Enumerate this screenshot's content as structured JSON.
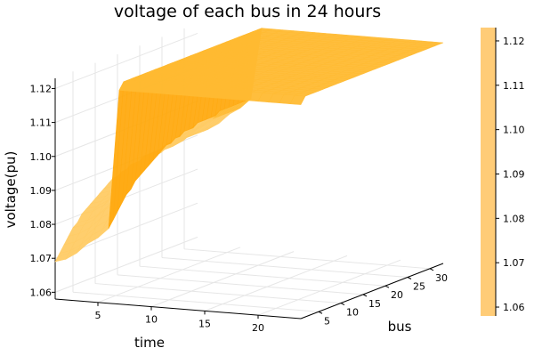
{
  "chart_data": {
    "type": "surface",
    "title": "voltage of each bus in 24 hours",
    "xlabel": "time",
    "ylabel": "bus",
    "zlabel": "voltage(pu)",
    "x_ticks": [
      "5",
      "10",
      "15",
      "20"
    ],
    "y_ticks": [
      "5",
      "10",
      "15",
      "20",
      "25",
      "30"
    ],
    "z_ticks": [
      "1.06",
      "1.07",
      "1.08",
      "1.09",
      "1.10",
      "1.11",
      "1.12"
    ],
    "colorbar_ticks": [
      "1.06",
      "1.07",
      "1.08",
      "1.09",
      "1.10",
      "1.11",
      "1.12"
    ],
    "x_range": [
      1,
      24
    ],
    "y_range": [
      1,
      33
    ],
    "z_range": [
      1.058,
      1.123
    ],
    "grid": true,
    "colors": {
      "surface_light": "#ffcc66",
      "surface_mid": "#ffbb33",
      "surface_dark": "#ffaa11",
      "colorbar": "#ffcc77"
    },
    "series": [
      {
        "profile_by_time": [
          1.069,
          1.07,
          1.072,
          1.075,
          1.077,
          1.08,
          1.121,
          1.121,
          1.121,
          1.121,
          1.121,
          1.121,
          1.121,
          1.121,
          1.121,
          1.121,
          1.121,
          1.121,
          1.121,
          1.121,
          1.121,
          1.121,
          1.121,
          1.121
        ],
        "bus_offset": [
          0.0,
          0.002,
          0.004,
          0.006,
          0.008,
          0.009,
          0.011,
          0.012,
          0.013,
          0.014,
          0.015,
          0.016,
          0.017,
          0.018,
          0.018,
          0.019,
          0.019,
          0.02,
          0.02,
          0.02,
          0.021,
          0.021,
          0.021,
          0.021,
          0.021,
          0.022,
          0.022,
          0.022,
          0.022,
          0.022,
          0.022,
          0.022,
          0.022
        ]
      }
    ]
  }
}
